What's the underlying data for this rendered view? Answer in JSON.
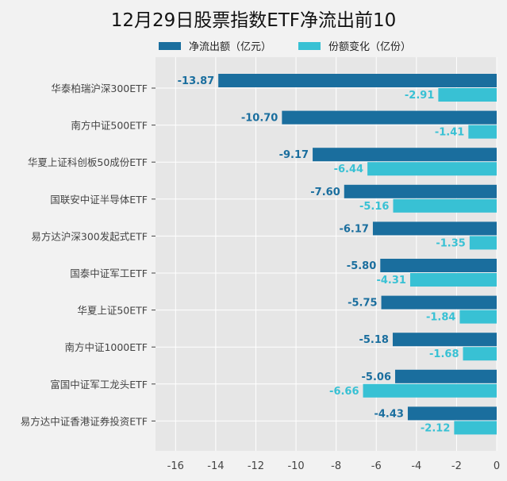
{
  "chart_data": {
    "type": "bar",
    "orientation": "horizontal",
    "title": "12月29日股票指数ETF净流出前10",
    "categories": [
      "华泰柏瑞沪深300ETF",
      "南方中证500ETF",
      "华夏上证科创板50成份ETF",
      "国联安中证半导体ETF",
      "易方达沪深300发起式ETF",
      "国泰中证军工ETF",
      "华夏上证50ETF",
      "南方中证1000ETF",
      "富国中证军工龙头ETF",
      "易方达中证香港证券投资ETF"
    ],
    "series": [
      {
        "name": "净流出额（亿元）",
        "color": "#1a6e9e",
        "values": [
          -13.87,
          -10.7,
          -9.17,
          -7.6,
          -6.17,
          -5.8,
          -5.75,
          -5.18,
          -5.06,
          -4.43
        ],
        "labels": [
          "-13.87",
          "-10.70",
          "-9.17",
          "-7.60",
          "-6.17",
          "-5.80",
          "-5.75",
          "-5.18",
          "-5.06",
          "-4.43"
        ]
      },
      {
        "name": "份额变化（亿份）",
        "color": "#38c1d4",
        "values": [
          -2.91,
          -1.41,
          -6.44,
          -5.16,
          -1.35,
          -4.31,
          -1.84,
          -1.68,
          -6.66,
          -2.12
        ],
        "labels": [
          "-2.91",
          "-1.41",
          "-6.44",
          "-5.16",
          "-1.35",
          "-4.31",
          "-1.84",
          "-1.68",
          "-6.66",
          "-2.12"
        ]
      }
    ],
    "xlim": [
      -17,
      0
    ],
    "xticks": [
      -16,
      -14,
      -12,
      -10,
      -8,
      -6,
      -4,
      -2,
      0
    ],
    "xtick_labels": [
      "-16",
      "-14",
      "-12",
      "-10",
      "-8",
      "-6",
      "-4",
      "-2",
      "0"
    ],
    "grid": true,
    "legend": "top"
  }
}
